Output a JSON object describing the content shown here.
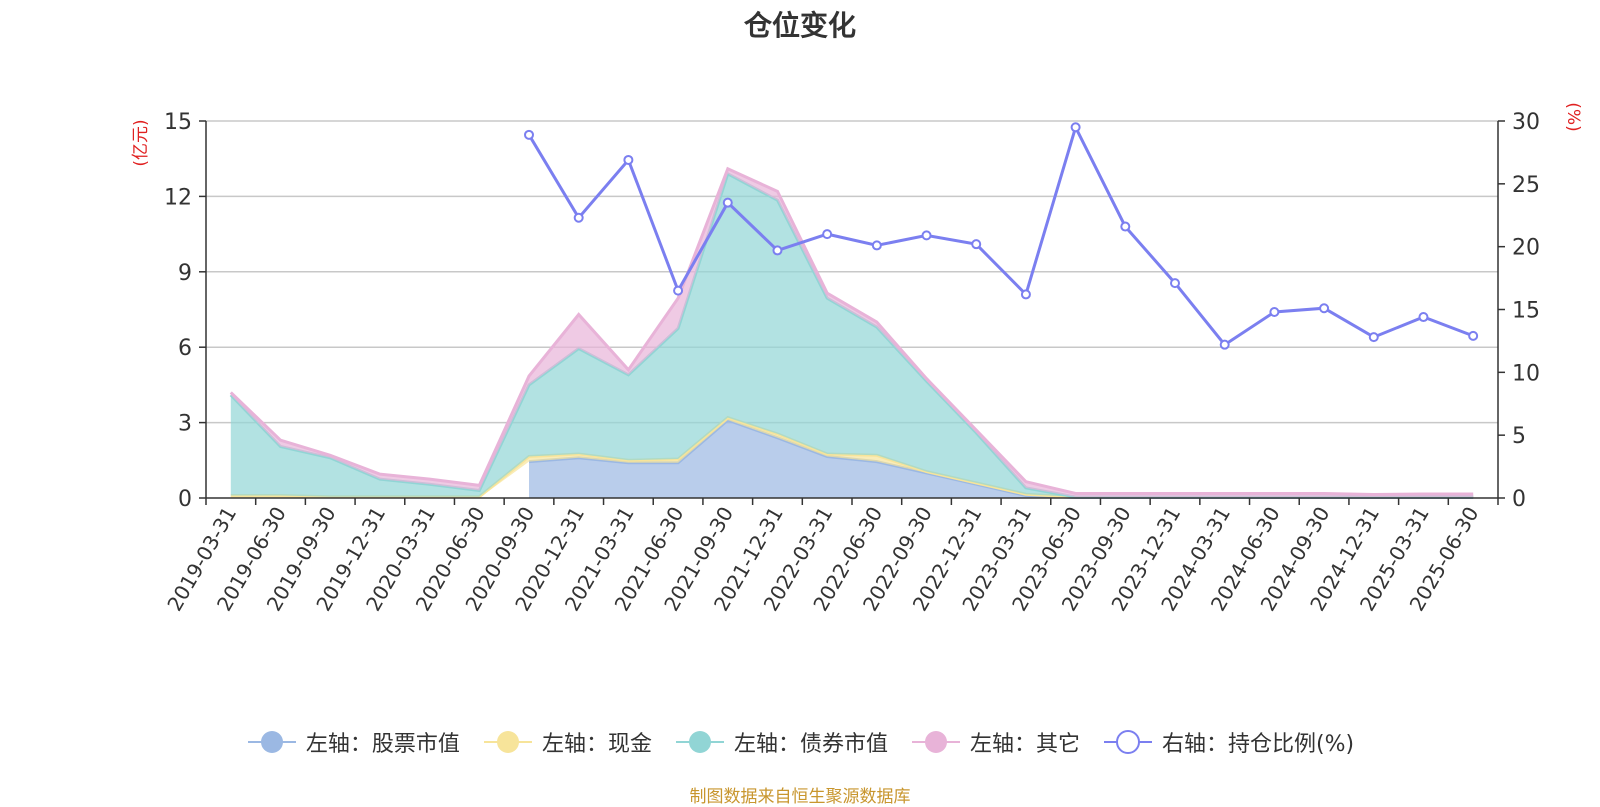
{
  "chart_data": {
    "type": "area",
    "title": "仓位变化",
    "left_axis_unit": "(亿元)",
    "right_axis_unit": "(%)",
    "source_note": "制图数据来自恒生聚源数据库",
    "categories": [
      "2019-03-31",
      "2019-06-30",
      "2019-09-30",
      "2019-12-31",
      "2020-03-31",
      "2020-06-30",
      "2020-09-30",
      "2020-12-31",
      "2021-03-31",
      "2021-06-30",
      "2021-09-30",
      "2021-12-31",
      "2022-03-31",
      "2022-06-30",
      "2022-09-30",
      "2022-12-31",
      "2023-03-31",
      "2023-06-30",
      "2023-09-30",
      "2023-12-31",
      "2024-03-31",
      "2024-06-30",
      "2024-09-30",
      "2024-12-31",
      "2025-03-31",
      "2025-06-30"
    ],
    "left_axis": {
      "min": 0,
      "max": 15,
      "ticks": [
        0,
        3,
        6,
        9,
        12,
        15
      ]
    },
    "right_axis": {
      "min": 0,
      "max": 30,
      "ticks": [
        0,
        5,
        10,
        15,
        20,
        25,
        30
      ]
    },
    "grid": true,
    "legend_position": "bottom",
    "series": [
      {
        "name": "左轴：股票市值",
        "axis": "left",
        "stacked": true,
        "color": "#9bb8e3",
        "values": [
          null,
          null,
          null,
          null,
          null,
          null,
          1.45,
          1.6,
          1.4,
          1.4,
          3.1,
          2.4,
          1.65,
          1.45,
          1.0,
          0.55,
          0.1,
          0.02,
          0.02,
          0.02,
          0.02,
          0.02,
          0.02,
          0.02,
          0.02,
          0.02
        ]
      },
      {
        "name": "左轴：现金",
        "axis": "left",
        "stacked": true,
        "color": "#f7e49a",
        "values": [
          0.1,
          0.1,
          0.05,
          0.05,
          0.05,
          0.05,
          0.2,
          0.15,
          0.1,
          0.15,
          0.1,
          0.15,
          0.1,
          0.25,
          0.05,
          0.05,
          0.05,
          0.02,
          0.02,
          0.02,
          0.02,
          0.02,
          0.02,
          0.02,
          0.02,
          0.02
        ]
      },
      {
        "name": "左轴：债券市值",
        "axis": "left",
        "stacked": true,
        "color": "#91d5d5",
        "values": [
          4.0,
          1.95,
          1.55,
          0.7,
          0.5,
          0.25,
          2.85,
          4.2,
          3.4,
          5.2,
          9.7,
          9.3,
          6.2,
          5.1,
          3.6,
          2.0,
          0.25,
          0.0,
          0.0,
          0.0,
          0.0,
          0.0,
          0.0,
          0.0,
          0.0,
          0.0
        ]
      },
      {
        "name": "左轴：其它",
        "axis": "left",
        "stacked": true,
        "color": "#e8b3d8",
        "values": [
          0.1,
          0.25,
          0.1,
          0.2,
          0.2,
          0.2,
          0.35,
          1.35,
          0.2,
          1.2,
          0.2,
          0.35,
          0.2,
          0.2,
          0.1,
          0.1,
          0.25,
          0.14,
          0.14,
          0.14,
          0.14,
          0.14,
          0.14,
          0.1,
          0.12,
          0.12
        ]
      },
      {
        "name": "右轴：持仓比例(%)",
        "axis": "right",
        "type": "line",
        "color": "#7b7ff0",
        "values": [
          null,
          null,
          null,
          null,
          null,
          null,
          28.9,
          22.3,
          26.9,
          16.5,
          23.5,
          19.7,
          21.0,
          20.1,
          20.9,
          20.2,
          16.2,
          29.5,
          21.6,
          17.1,
          12.2,
          14.8,
          15.1,
          12.8,
          14.4,
          12.9
        ]
      }
    ]
  }
}
